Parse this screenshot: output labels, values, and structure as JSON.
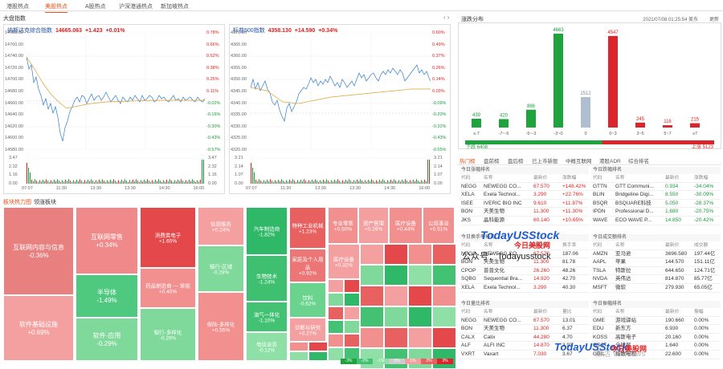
{
  "tabs": [
    "港股热点",
    "美股热点",
    "A股热点",
    "沪深港通热点",
    "新加坡热点"
  ],
  "left_title": "大盘指数",
  "nasdaq": {
    "name": "纳斯达克综合指数",
    "value": "14665.063",
    "chg": "+1.423",
    "pct": "+0.01%",
    "y_left": [
      "14780.00",
      "14760.00",
      "14740.00",
      "14720.00",
      "14700.00",
      "14680.00",
      "14660.00",
      "14640.00",
      "14620.00",
      "14600.00",
      "14580.00"
    ],
    "y_right": [
      "0.78%",
      "0.66%",
      "0.52%",
      "0.38%",
      "0.25%",
      "0.11%",
      "-0.02%",
      "-0.16%",
      "-0.30%",
      "-0.43%",
      "-0.57%"
    ],
    "vol_left": [
      "3.47",
      "2.32",
      "1.16",
      "0.00"
    ],
    "vol_right": [
      "3.47",
      "2.32",
      "1.16",
      "0.00"
    ],
    "x": [
      "07:07",
      "11:30",
      "13:30",
      "13:30",
      "14:30",
      "16:00"
    ]
  },
  "sp500": {
    "name": "标普500指数",
    "value": "4358.130",
    "chg": "+14.590",
    "pct": "+0.34%",
    "y_left": [
      "4370.00",
      "4365.00",
      "4360.00",
      "4355.00",
      "4350.00",
      "4345.00",
      "4340.00",
      "4335.00",
      "4330.00",
      "4325.00",
      "4320.00"
    ],
    "y_right": [
      "0.60%",
      "0.49%",
      "0.37%",
      "0.26%",
      "0.14%",
      "0.03%",
      "-0.09%",
      "-0.20%",
      "-0.32%",
      "-0.43%",
      "-0.55%"
    ],
    "vol_left": [
      "3.21",
      "2.14",
      "1.07",
      "0.00"
    ],
    "vol_right": [
      "3.21",
      "2.14",
      "1.07",
      "0.00"
    ],
    "x": [
      "07:07",
      "11:30",
      "13:30",
      "13:30",
      "14:30",
      "16:00"
    ]
  },
  "dist": {
    "title": "涨跌分布",
    "time": "2021/07/08 01:25:54 美东",
    "update": "更新",
    "bars": [
      {
        "label": "≤-7",
        "value": 439,
        "color": "#1fa33c"
      },
      {
        "label": "-7~-5",
        "value": 420,
        "color": "#1fa33c"
      },
      {
        "label": "-5~-3",
        "value": 886,
        "color": "#1fa33c"
      },
      {
        "label": "-3~0",
        "value": 4663,
        "color": "#1fa33c"
      },
      {
        "label": "0",
        "value": 1512,
        "color": "#b0bfd0"
      },
      {
        "label": "0~3",
        "value": 4547,
        "color": "#d9252b"
      },
      {
        "label": "3~5",
        "value": 245,
        "color": "#d9252b"
      },
      {
        "label": "5~7",
        "value": 116,
        "color": "#d9252b"
      },
      {
        "label": "≥7",
        "value": 215,
        "color": "#d9252b"
      }
    ],
    "down": "下跌 6408",
    "up": "上涨 5123"
  },
  "rank_tabs": [
    "热门榜",
    "盘前榜",
    "盘后榜",
    "已上市新股",
    "中概互联网",
    "港股ADR",
    "综合排名"
  ],
  "t_gain": {
    "cap": "今日涨幅排名",
    "head": [
      "代码",
      "名称",
      "最新价",
      "涨跌幅"
    ],
    "rows": [
      [
        "NEGG",
        "NEWEGG CO...",
        "67.570",
        "+148.42%"
      ],
      [
        "XELA",
        "Exela Technol...",
        "3.290",
        "+22.76%"
      ],
      [
        "ISEE",
        "IVERIC BIO INC",
        "9.610",
        "+11.87%"
      ],
      [
        "BON",
        "天美生物",
        "11.300",
        "+11.30%"
      ],
      [
        "JKS",
        "晶科能源",
        "60.140",
        "+10.65%"
      ]
    ]
  },
  "t_loss": {
    "cap": "今日跌幅排名",
    "head": [
      "代码",
      "名称",
      "最新价",
      "涨跌幅"
    ],
    "rows": [
      [
        "GTTN",
        "GTT Communi...",
        "0.934",
        "-34.04%"
      ],
      [
        "BLIN",
        "Bridgeline Digi...",
        "8.550",
        "-30.09%"
      ],
      [
        "BSQR",
        "BSQUARE科技",
        "5.050",
        "-28.37%"
      ],
      [
        "IPDN",
        "Professional D...",
        "1.680",
        "-20.75%"
      ],
      [
        "WAVE",
        "ECO WAVE P...",
        "14.850",
        "-20.42%"
      ]
    ]
  },
  "t_turn": {
    "cap": "今日换手率排名",
    "head": [
      "代码",
      "名称",
      "最新价",
      "换手率"
    ],
    "rows": [
      [
        "NEGG",
        "NEWEGG CO...",
        "67.570",
        "187.06"
      ],
      [
        "BON",
        "天美生物",
        "11.300",
        "81.78"
      ],
      [
        "CPOP",
        "普普文化",
        "26.260",
        "48.26"
      ],
      [
        "SQBG",
        "Sequential Bra...",
        "14.920",
        "42.70"
      ],
      [
        "XELA",
        "Exela Technol...",
        "3.290",
        "40.30"
      ]
    ]
  },
  "t_amt": {
    "cap": "今日成交额排名",
    "head": [
      "代码",
      "名称",
      "最新价",
      "成交额"
    ],
    "rows": [
      [
        "AMZN",
        "亚马逊",
        "3696.580",
        "197.44亿"
      ],
      [
        "AAPL",
        "苹果",
        "144.570",
        "151.11亿"
      ],
      [
        "TSLA",
        "特斯拉",
        "644.650",
        "124.71亿"
      ],
      [
        "NVDA",
        "英伟达",
        "814.870",
        "85.77亿"
      ],
      [
        "MSFT",
        "微软",
        "279.930",
        "65.05亿"
      ]
    ]
  },
  "t_vr": {
    "cap": "今日量比排名",
    "head": [
      "代码",
      "名称",
      "最新价",
      "量比"
    ],
    "rows": [
      [
        "NEGG",
        "NEWEGG CO...",
        "67.570",
        "13.01"
      ],
      [
        "BON",
        "天美生物",
        "11.300",
        "6.37"
      ],
      [
        "CALX",
        "Calix",
        "44.280",
        "4.70"
      ],
      [
        "ALF",
        "ALFI INC",
        "14.870",
        "3.93"
      ],
      [
        "VXRT",
        "Vaxart",
        "7.030",
        "3.67"
      ]
    ]
  },
  "t_amp": {
    "cap": "今日振幅排名",
    "head": [
      "代码",
      "名称",
      "最新价",
      "振幅"
    ],
    "rows": [
      [
        "GME",
        "游戏驿站",
        "190.660",
        "0.00%"
      ],
      [
        "EDU",
        "新东方",
        "6.930",
        "0.00%"
      ],
      [
        "KOSS",
        "高斯电子",
        "20.160",
        "0.00%"
      ],
      [
        "GSAT",
        "全球星",
        "1.640",
        "0.00%"
      ],
      [
        "GBIL",
        "指数电视",
        "22.600",
        "0.00%"
      ]
    ]
  },
  "heat_tabs": [
    "板块热力图",
    "领涨板块"
  ],
  "heat": [
    {
      "n": "互联网内容与信息",
      "p": "-0.36%",
      "c": "#e88080"
    },
    {
      "n": "软件基础设施",
      "p": "+0.69%",
      "c": "#f5a0a0"
    },
    {
      "n": "互联网零售",
      "p": "+0.34%",
      "c": "#f08a8a"
    },
    {
      "n": "半导体",
      "p": "-1.49%",
      "c": "#4fc980"
    },
    {
      "n": "软件-应用",
      "p": "-0.29%",
      "c": "#7fd99a"
    },
    {
      "n": "消费类电子",
      "p": "+1.65%",
      "c": "#e4484a"
    },
    {
      "n": "药品制造商 — 常规",
      "p": "+0.40%",
      "c": "#f29090"
    },
    {
      "n": "银行-多样化",
      "p": "-0.29%",
      "c": "#7fd99a"
    },
    {
      "n": "信用服务",
      "p": "+0.24%",
      "c": "#f5a0a0"
    },
    {
      "n": "银行-区域",
      "p": "-0.28%",
      "c": "#7fd99a"
    },
    {
      "n": "保险-多样化",
      "p": "+0.55%",
      "c": "#f29090"
    },
    {
      "n": "汽车制造商",
      "p": "-1.82%",
      "c": "#2fb868"
    },
    {
      "n": "生物技术",
      "p": "-1.24%",
      "c": "#3fc070"
    },
    {
      "n": "油气一体化",
      "p": "-1.10%",
      "c": "#44c274"
    },
    {
      "n": "电信业务",
      "p": "-0.12%",
      "c": "#8ee0a6"
    },
    {
      "n": "特种工业机械",
      "p": "+1.23%",
      "c": "#e86060"
    },
    {
      "n": "家庭及个人用品",
      "p": "+0.92%",
      "c": "#ec7676"
    },
    {
      "n": "饮料",
      "p": "-0.62%",
      "c": "#6ad48e"
    },
    {
      "n": "诊断与研究",
      "p": "+0.27%",
      "c": "#f5a0a0"
    },
    {
      "n": "专业零售",
      "p": "+0.50%",
      "c": "#f29090"
    },
    {
      "n": "资产管理",
      "p": "+0.26%",
      "c": "#f5a0a0"
    },
    {
      "n": "医疗设备",
      "p": "+0.44%",
      "c": "#f29090"
    },
    {
      "n": "公用事业",
      "p": "+0.51%",
      "c": "#f29090"
    },
    {
      "n": "医疗设备",
      "p": "+0.32%",
      "c": "#f5a0a0"
    }
  ],
  "footer_pcts": [
    "-3%",
    "-2%",
    "-1%",
    "0%",
    "1%",
    "2%",
    "3%"
  ],
  "watermarks": {
    "a": "TodayUSStock",
    "b": "今日美股网",
    "c": "公众号：Todayusstock",
    "d": "TodayUSStock",
    "e": "今日美股网",
    "f": "激活 Windows"
  }
}
